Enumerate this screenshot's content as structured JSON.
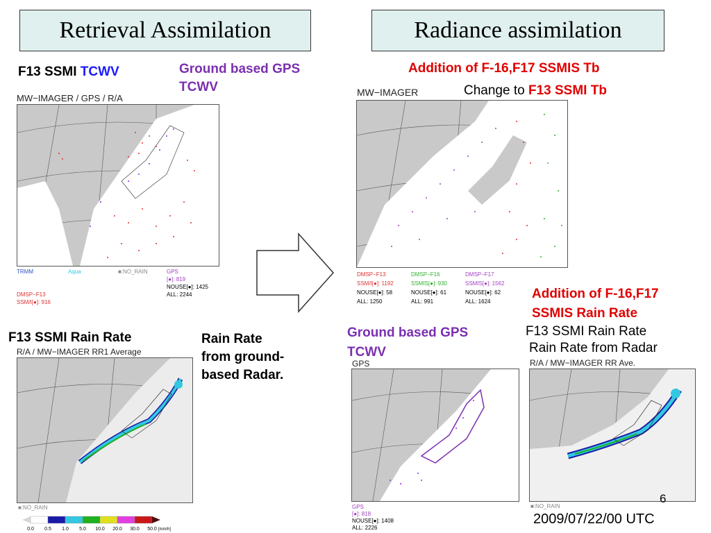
{
  "titles": {
    "left": "Retrieval Assimilation",
    "right": "Radiance assimilation"
  },
  "left_top": {
    "label_prefix": "F13 SSMI ",
    "label_suffix": "TCWV",
    "gps_label_1": "Ground based GPS",
    "gps_label_2": "TCWV",
    "map_title": "MW−IMAGER / GPS / R/A",
    "legend": {
      "trmm": "TRMM",
      "aqua": "Aqua",
      "norain": "■:NO_RAIN",
      "gps": "GPS",
      "gps_count": "[●]: 819",
      "nouse": "NOUSE[●]: 1425",
      "all": "ALL: 2244",
      "dmsp": "DMSP−F13",
      "ssmi": "SSM/I[●]: 916"
    }
  },
  "right_top": {
    "addition": "Addition of F-16,F17 SSMIS Tb",
    "change_prefix": "Change to ",
    "change_suffix": "F13 SSMI Tb",
    "map_title": "MW−IMAGER",
    "legend": {
      "f13": "DMSP−F13",
      "f13_ssmi": "SSM/I[●]: 1192",
      "f13_nouse": "NOUSE[●]: 58",
      "f13_all": "ALL: 1250",
      "f16": "DMSP−F16",
      "f16_ssmis": "SSMIS[●]: 930",
      "f16_nouse": "NOUSE[●]: 61",
      "f16_all": "ALL: 991",
      "f17": "DMSP−F17",
      "f17_ssmis": "SSMIS[●]: 1562",
      "f17_nouse": "NOUSE[●]: 62",
      "f17_all": "ALL: 1624"
    }
  },
  "right_mid": {
    "addition_1": "Addition of F-16,F17",
    "addition_2": "SSMIS Rain Rate"
  },
  "left_bottom": {
    "label": "F13 SSMI Rain Rate",
    "map_title": "R/A / MW−IMAGER  RR1 Average",
    "radar_1": "Rain Rate",
    "radar_2": "from ground-",
    "radar_3": "based Radar.",
    "norain": "■:NO_RAIN",
    "colorbar_ticks": [
      "0.0",
      "0.5",
      "1.0",
      "5.0",
      "10.0",
      "20.0",
      "30.0",
      "50.0"
    ],
    "colorbar_unit": "[mm/h]",
    "colorbar_colors": [
      "#d8d8d8",
      "#ffffff",
      "#1a1aa8",
      "#33c8e0",
      "#20b020",
      "#e0e020",
      "#e040e0",
      "#c81818",
      "#501010"
    ]
  },
  "mid_bottom": {
    "gps_label_1": "Ground based GPS",
    "gps_label_2": "TCWV",
    "map_title": "GPS",
    "legend": {
      "gps": "GPS",
      "gps_count": "[●]: 818",
      "nouse": "NOUSE[●]: 1408",
      "all": "ALL: 2226"
    }
  },
  "right_bottom": {
    "line1": "F13 SSMI Rain Rate",
    "line2": "Rain Rate from Radar",
    "map_title": "R/A / MW−IMAGER  RR Ave.",
    "norain": "■:NO_RAIN",
    "page_number": "6",
    "datetime": "2009/07/22/00 UTC"
  }
}
